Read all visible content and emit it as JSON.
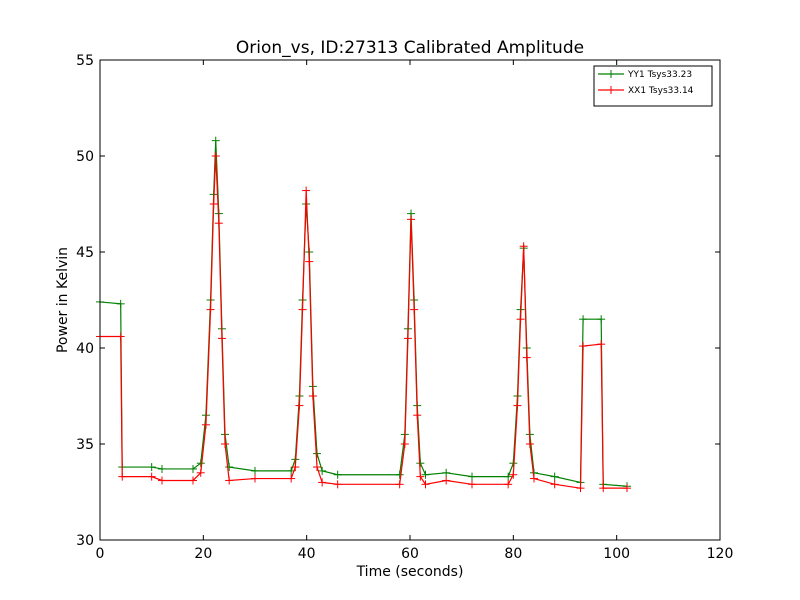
{
  "chart_data": {
    "type": "line",
    "title": "Orion_vs, ID:27313 Calibrated Amplitude",
    "xlabel": "Time (seconds)",
    "ylabel": "Power in Kelvin",
    "xlim": [
      0,
      120
    ],
    "ylim": [
      30,
      55
    ],
    "xticks": [
      0,
      20,
      40,
      60,
      80,
      100,
      120
    ],
    "yticks": [
      30,
      35,
      40,
      45,
      50,
      55
    ],
    "grid": false,
    "legend_position": "top-right",
    "series": [
      {
        "name": "YY1 Tsys33.23",
        "color": "#008000",
        "marker": "plus",
        "points": [
          [
            0,
            42.4
          ],
          [
            4,
            42.3
          ],
          [
            4.3,
            33.8
          ],
          [
            10,
            33.8
          ],
          [
            12,
            33.7
          ],
          [
            18,
            33.7
          ],
          [
            19.5,
            34.0
          ],
          [
            20.5,
            36.5
          ],
          [
            21.4,
            42.5
          ],
          [
            22.0,
            48.0
          ],
          [
            22.4,
            50.8
          ],
          [
            23.0,
            47.0
          ],
          [
            23.6,
            41.0
          ],
          [
            24.2,
            35.5
          ],
          [
            25,
            33.8
          ],
          [
            30,
            33.6
          ],
          [
            37,
            33.6
          ],
          [
            37.8,
            34.2
          ],
          [
            38.6,
            37.5
          ],
          [
            39.2,
            42.5
          ],
          [
            39.9,
            47.5
          ],
          [
            40.5,
            45.0
          ],
          [
            41.2,
            38.0
          ],
          [
            42,
            34.5
          ],
          [
            43,
            33.6
          ],
          [
            46,
            33.4
          ],
          [
            58,
            33.4
          ],
          [
            59.0,
            35.5
          ],
          [
            59.6,
            41.0
          ],
          [
            60.2,
            47.0
          ],
          [
            60.8,
            42.5
          ],
          [
            61.4,
            37.0
          ],
          [
            62,
            34.0
          ],
          [
            63,
            33.4
          ],
          [
            67,
            33.5
          ],
          [
            72,
            33.3
          ],
          [
            79,
            33.3
          ],
          [
            80.0,
            34.0
          ],
          [
            80.8,
            37.5
          ],
          [
            81.4,
            42.0
          ],
          [
            82.0,
            45.2
          ],
          [
            82.6,
            40.0
          ],
          [
            83.2,
            35.5
          ],
          [
            84,
            33.5
          ],
          [
            88,
            33.3
          ],
          [
            93,
            33.0
          ],
          [
            93.5,
            41.5
          ],
          [
            97,
            41.5
          ],
          [
            97.4,
            32.9
          ],
          [
            102,
            32.8
          ]
        ]
      },
      {
        "name": "XX1 Tsys33.14",
        "color": "#ff0000",
        "marker": "plus",
        "points": [
          [
            0,
            40.6
          ],
          [
            4,
            40.6
          ],
          [
            4.3,
            33.3
          ],
          [
            10,
            33.3
          ],
          [
            12,
            33.1
          ],
          [
            18,
            33.1
          ],
          [
            19.5,
            33.5
          ],
          [
            20.5,
            36.0
          ],
          [
            21.4,
            42.0
          ],
          [
            22.0,
            47.5
          ],
          [
            22.4,
            50.0
          ],
          [
            23.0,
            46.5
          ],
          [
            23.6,
            40.5
          ],
          [
            24.2,
            35.0
          ],
          [
            25,
            33.1
          ],
          [
            30,
            33.2
          ],
          [
            37,
            33.2
          ],
          [
            37.8,
            33.8
          ],
          [
            38.6,
            37.0
          ],
          [
            39.2,
            42.0
          ],
          [
            39.9,
            48.2
          ],
          [
            40.5,
            44.5
          ],
          [
            41.2,
            37.5
          ],
          [
            42,
            33.8
          ],
          [
            43,
            33.0
          ],
          [
            46,
            32.9
          ],
          [
            58,
            32.9
          ],
          [
            59.0,
            35.0
          ],
          [
            59.6,
            40.5
          ],
          [
            60.2,
            46.7
          ],
          [
            60.8,
            42.0
          ],
          [
            61.4,
            36.5
          ],
          [
            62,
            33.3
          ],
          [
            63,
            32.9
          ],
          [
            67,
            33.1
          ],
          [
            72,
            32.9
          ],
          [
            79,
            32.9
          ],
          [
            80.0,
            33.4
          ],
          [
            80.8,
            37.0
          ],
          [
            81.4,
            41.5
          ],
          [
            82.0,
            45.3
          ],
          [
            82.6,
            39.5
          ],
          [
            83.2,
            35.0
          ],
          [
            84,
            33.2
          ],
          [
            88,
            32.9
          ],
          [
            93,
            32.7
          ],
          [
            93.5,
            40.1
          ],
          [
            97,
            40.2
          ],
          [
            97.4,
            32.7
          ],
          [
            102,
            32.7
          ]
        ]
      }
    ]
  }
}
